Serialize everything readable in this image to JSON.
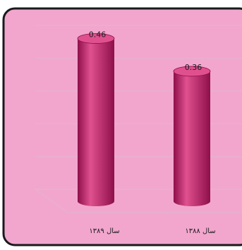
{
  "chart_data": {
    "type": "bar",
    "categories": [
      "سال ۱۳۸۹",
      "سال ۱۳۸۸"
    ],
    "values": [
      0.46,
      0.36
    ],
    "value_labels": [
      "0.46",
      "0.36"
    ],
    "ylim": [
      0,
      0.5
    ],
    "grid": true,
    "colors": {
      "plot_background": "#f2a6cd",
      "frame": "#1a1a1a",
      "gridline": "#e8b0cf",
      "bar": "#c21e6e",
      "bar_light": "#e0508f",
      "bar_dark": "#8e0f4b"
    }
  }
}
